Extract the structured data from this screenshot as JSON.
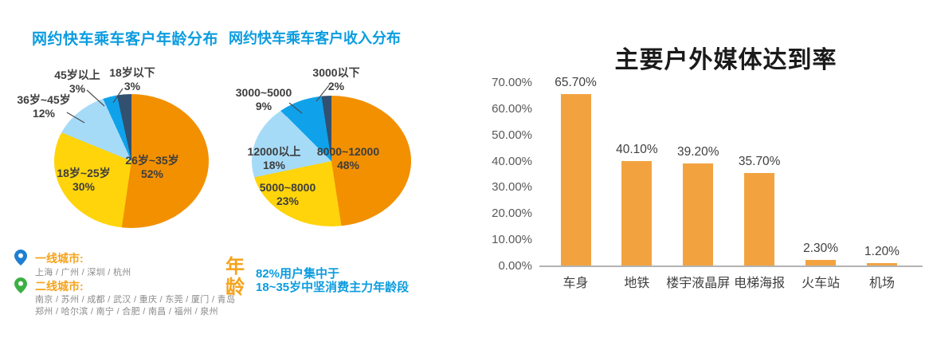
{
  "chart_data": [
    {
      "type": "pie",
      "title": "网约快车乘车客户年龄分布",
      "labels": [
        "26岁~35岁",
        "18岁~25岁",
        "36岁~45岁",
        "45岁以上",
        "18岁以下"
      ],
      "values": [
        52,
        30,
        12,
        3,
        3
      ],
      "pct_labels": [
        "52%",
        "30%",
        "12%",
        "3%",
        "3%"
      ],
      "colors": [
        "#F29000",
        "#FFD40B",
        "#A6DBF8",
        "#0FA2EA",
        "#32506F"
      ],
      "start_angle": "12-oclock, clockwise",
      "legend_position": "none"
    },
    {
      "type": "pie",
      "title": "网约快车乘车客户收入分布",
      "labels": [
        "8000~12000",
        "5000~8000",
        "12000以上",
        "3000~5000",
        "3000以下"
      ],
      "values": [
        48,
        23,
        18,
        9,
        2
      ],
      "pct_labels": [
        "48%",
        "23%",
        "18%",
        "9%",
        "2%"
      ],
      "colors": [
        "#F29000",
        "#FFD40B",
        "#A6DBF8",
        "#0FA2EA",
        "#32506F"
      ],
      "start_angle": "12-oclock, clockwise",
      "legend_position": "none"
    },
    {
      "type": "bar",
      "title": "主要户外媒体达到率",
      "categories": [
        "车身",
        "地铁",
        "楼宇液晶屏",
        "电梯海报",
        "火车站",
        "机场"
      ],
      "values": [
        65.7,
        40.1,
        39.2,
        35.7,
        2.3,
        1.2
      ],
      "value_labels": [
        "65.70%",
        "40.10%",
        "39.20%",
        "35.70%",
        "2.30%",
        "1.20%"
      ],
      "yticks": [
        "70.00%",
        "60.00%",
        "50.00%",
        "40.00%",
        "30.00%",
        "20.00%",
        "10.00%",
        "0.00%"
      ],
      "ytick_values": [
        70,
        60,
        50,
        40,
        30,
        20,
        10,
        0
      ],
      "ylim": [
        0,
        70
      ],
      "xlabel": "",
      "ylabel": "",
      "grid": false,
      "legend_position": "none",
      "bar_color": "#F2A340"
    }
  ],
  "note": {
    "keyword": "年龄",
    "line1": "82%用户集中于",
    "line2": "18~35岁中坚消费主力年龄段"
  },
  "legend": {
    "tier1": {
      "label": "一线城市:",
      "cities": "上海 / 广州 / 深圳 / 杭州"
    },
    "tier2": {
      "label": "二线城市:",
      "cities_line1": "南京 / 苏州 / 成都 / 武汉 / 重庆 / 东莞 / 厦门 / 青岛",
      "cities_line2": "郑州 / 哈尔滨 / 南宁 / 合肥 / 南昌 / 福州 / 泉州"
    }
  },
  "colors": {
    "accent_blue": "#0B9CDF",
    "accent_orange": "#F5A31C",
    "pin_blue": "#1E7FD0",
    "pin_green": "#3CB043",
    "bar_orange": "#F2A340",
    "pie_orange": "#F29000",
    "pie_yellow": "#FFD40B",
    "pie_lightblue": "#A6DBF8",
    "pie_blue": "#0FA2EA",
    "pie_navy": "#32506F"
  }
}
